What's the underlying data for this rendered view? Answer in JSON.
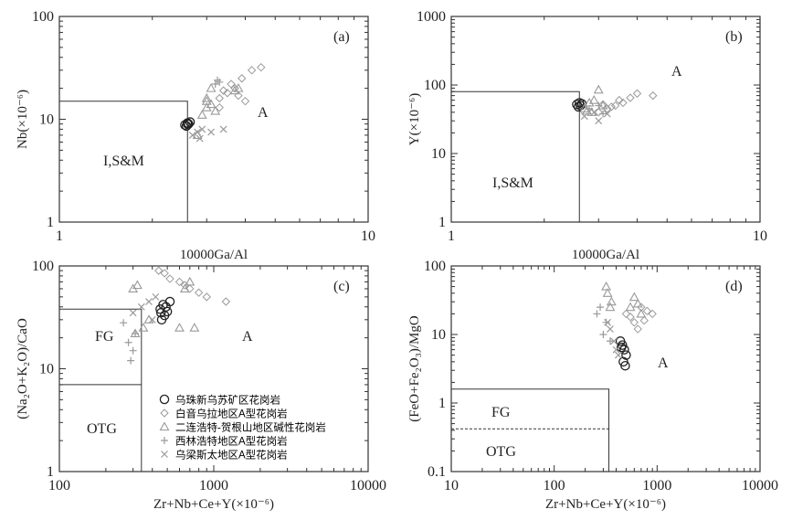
{
  "chart_data": [
    {
      "type": "scatter",
      "panel_label": "(a)",
      "xlabel": "10000Ga/Al",
      "ylabel": "Nb(×10⁻⁶)",
      "x_scale": "log",
      "y_scale": "log",
      "xlim": [
        1,
        10
      ],
      "ylim": [
        1,
        100
      ],
      "x_ticks": [
        "1",
        "10"
      ],
      "y_ticks": [
        "1",
        "10",
        "100"
      ],
      "fields": [
        {
          "label": "I,S&M"
        },
        {
          "label": "A"
        }
      ],
      "boundary": {
        "x": 2.6,
        "y": 15
      },
      "series": [
        {
          "key": "wuzhu",
          "x": [
            2.55,
            2.6,
            2.62,
            2.58,
            2.65,
            2.6
          ],
          "y": [
            8.8,
            9.2,
            9.0,
            8.6,
            9.4,
            9.0
          ]
        },
        {
          "key": "baiyin",
          "x": [
            3.3,
            3.5,
            3.7,
            3.4,
            3.8,
            3.6,
            4.2,
            4.5,
            3.9,
            4.0,
            3.3
          ],
          "y": [
            16,
            18,
            20,
            19,
            17,
            22,
            30,
            32,
            25,
            15,
            13
          ]
        },
        {
          "key": "erlian",
          "x": [
            2.8,
            3.0,
            3.1,
            3.0,
            3.2,
            3.1,
            2.9,
            3.7,
            3.8,
            3.0
          ],
          "y": [
            7,
            13,
            14,
            15,
            12,
            20,
            11,
            19,
            20,
            16
          ]
        },
        {
          "key": "xilin",
          "x": [
            3.2,
            3.3,
            3.25
          ],
          "y": [
            22,
            23,
            24
          ]
        },
        {
          "key": "wuliang",
          "x": [
            2.7,
            2.8,
            3.1,
            2.9,
            3.4,
            2.85
          ],
          "y": [
            7.0,
            7.5,
            7.5,
            8.0,
            8.0,
            6.5
          ]
        }
      ]
    },
    {
      "type": "scatter",
      "panel_label": "(b)",
      "xlabel": "10000Ga/Al",
      "ylabel": "Y(×10⁻⁶)",
      "x_scale": "log",
      "y_scale": "log",
      "xlim": [
        1,
        10
      ],
      "ylim": [
        1,
        1000
      ],
      "x_ticks": [
        "1",
        "10"
      ],
      "y_ticks": [
        "1",
        "10",
        "100",
        "1000"
      ],
      "fields": [
        {
          "label": "I,S&M"
        },
        {
          "label": "A"
        }
      ],
      "boundary": {
        "x": 2.6,
        "y": 80
      },
      "series": [
        {
          "key": "wuzhu",
          "x": [
            2.55,
            2.6,
            2.62,
            2.58,
            2.65
          ],
          "y": [
            52,
            55,
            50,
            48,
            53
          ]
        },
        {
          "key": "baiyin",
          "x": [
            3.0,
            3.2,
            3.4,
            3.5,
            3.6,
            3.8,
            4.0,
            4.5,
            3.3,
            3.1
          ],
          "y": [
            40,
            45,
            50,
            60,
            55,
            65,
            75,
            70,
            48,
            52
          ]
        },
        {
          "key": "erlian",
          "x": [
            2.7,
            2.8,
            2.9,
            3.0,
            2.85,
            3.1,
            2.75
          ],
          "y": [
            45,
            55,
            60,
            85,
            40,
            50,
            42
          ]
        },
        {
          "key": "xilin",
          "x": [
            2.8,
            3.0,
            3.1
          ],
          "y": [
            45,
            50,
            38
          ]
        },
        {
          "key": "wuliang",
          "x": [
            2.7,
            2.9,
            3.0,
            3.2
          ],
          "y": [
            35,
            40,
            30,
            38
          ]
        }
      ]
    },
    {
      "type": "scatter",
      "panel_label": "(c)",
      "xlabel": "Zr+Nb+Ce+Y(×10⁻⁶)",
      "ylabel": "(Na₂O+K₂O)/CaO",
      "x_scale": "log",
      "y_scale": "log",
      "xlim": [
        100,
        10000
      ],
      "ylim": [
        1,
        100
      ],
      "x_ticks": [
        "100",
        "1000",
        "10000"
      ],
      "y_ticks": [
        "1",
        "10",
        "100"
      ],
      "fields": [
        {
          "label": "FG"
        },
        {
          "label": "OTG"
        },
        {
          "label": "A"
        }
      ],
      "boundaries": {
        "fg_x": 340,
        "fg_y": 38,
        "otg_y": 7
      },
      "series": [
        {
          "key": "wuzhu",
          "x": [
            460,
            480,
            500,
            450,
            470,
            520,
            490,
            455
          ],
          "y": [
            30,
            33,
            36,
            38,
            42,
            45,
            40,
            35
          ]
        },
        {
          "key": "baiyin",
          "x": [
            440,
            480,
            520,
            600,
            700,
            800,
            900,
            1200,
            650
          ],
          "y": [
            90,
            85,
            75,
            70,
            60,
            55,
            50,
            45,
            65
          ]
        },
        {
          "key": "erlian",
          "x": [
            300,
            320,
            350,
            380,
            600,
            650,
            700,
            750,
            310
          ],
          "y": [
            60,
            65,
            25,
            30,
            25,
            60,
            70,
            25,
            22
          ]
        },
        {
          "key": "xilin",
          "x": [
            260,
            280,
            300,
            310,
            290
          ],
          "y": [
            28,
            18,
            15,
            22,
            12
          ]
        },
        {
          "key": "wuliang",
          "x": [
            300,
            340,
            380,
            400,
            420
          ],
          "y": [
            35,
            40,
            45,
            30,
            50
          ]
        }
      ],
      "legend": {
        "placement": "bottom-center",
        "entries": [
          {
            "key": "wuzhu",
            "label": "乌珠新乌苏矿区花岗岩"
          },
          {
            "key": "baiyin",
            "label": "白音乌拉地区A型花岗岩"
          },
          {
            "key": "erlian",
            "label": "二连浩特-贺根山地区碱性花岗岩"
          },
          {
            "key": "xilin",
            "label": "西林浩特地区A型花岗岩"
          },
          {
            "key": "wuliang",
            "label": "乌梁斯太地区A型花岗岩"
          }
        ]
      }
    },
    {
      "type": "scatter",
      "panel_label": "(d)",
      "xlabel": "Zr+Nb+Ce+Y(×10⁻⁶)",
      "ylabel": "(FeO+Fe₂O₃)/MgO",
      "x_scale": "log",
      "y_scale": "log",
      "xlim": [
        10,
        10000
      ],
      "ylim": [
        0.1,
        100
      ],
      "x_ticks": [
        "10",
        "100",
        "1000",
        "10000"
      ],
      "y_ticks": [
        "0.1",
        "1",
        "10",
        "100"
      ],
      "fields": [
        {
          "label": "FG"
        },
        {
          "label": "OTG"
        },
        {
          "label": "A"
        }
      ],
      "boundaries": {
        "x": 340,
        "y_top": 1.6,
        "y_dashed": 0.42
      },
      "series": [
        {
          "key": "wuzhu",
          "x": [
            440,
            460,
            480,
            500,
            470,
            490,
            450
          ],
          "y": [
            8,
            7,
            6,
            5,
            4,
            3.5,
            6.5
          ]
        },
        {
          "key": "baiyin",
          "x": [
            500,
            550,
            600,
            700,
            800,
            650,
            900,
            750
          ],
          "y": [
            20,
            18,
            15,
            25,
            22,
            12,
            20,
            16
          ]
        },
        {
          "key": "erlian",
          "x": [
            320,
            330,
            350,
            360,
            600,
            700,
            550,
            650
          ],
          "y": [
            50,
            40,
            25,
            30,
            35,
            20,
            25,
            28
          ]
        },
        {
          "key": "xilin",
          "x": [
            260,
            280,
            300,
            320,
            350
          ],
          "y": [
            20,
            25,
            10,
            15,
            8
          ]
        },
        {
          "key": "wuliang",
          "x": [
            350,
            380,
            400,
            420,
            330
          ],
          "y": [
            12,
            8,
            6,
            5,
            15
          ]
        }
      ]
    }
  ],
  "colors": {
    "axis": "#333333",
    "marker_circle": "#222222",
    "marker_grey": "#9a9a9a"
  }
}
